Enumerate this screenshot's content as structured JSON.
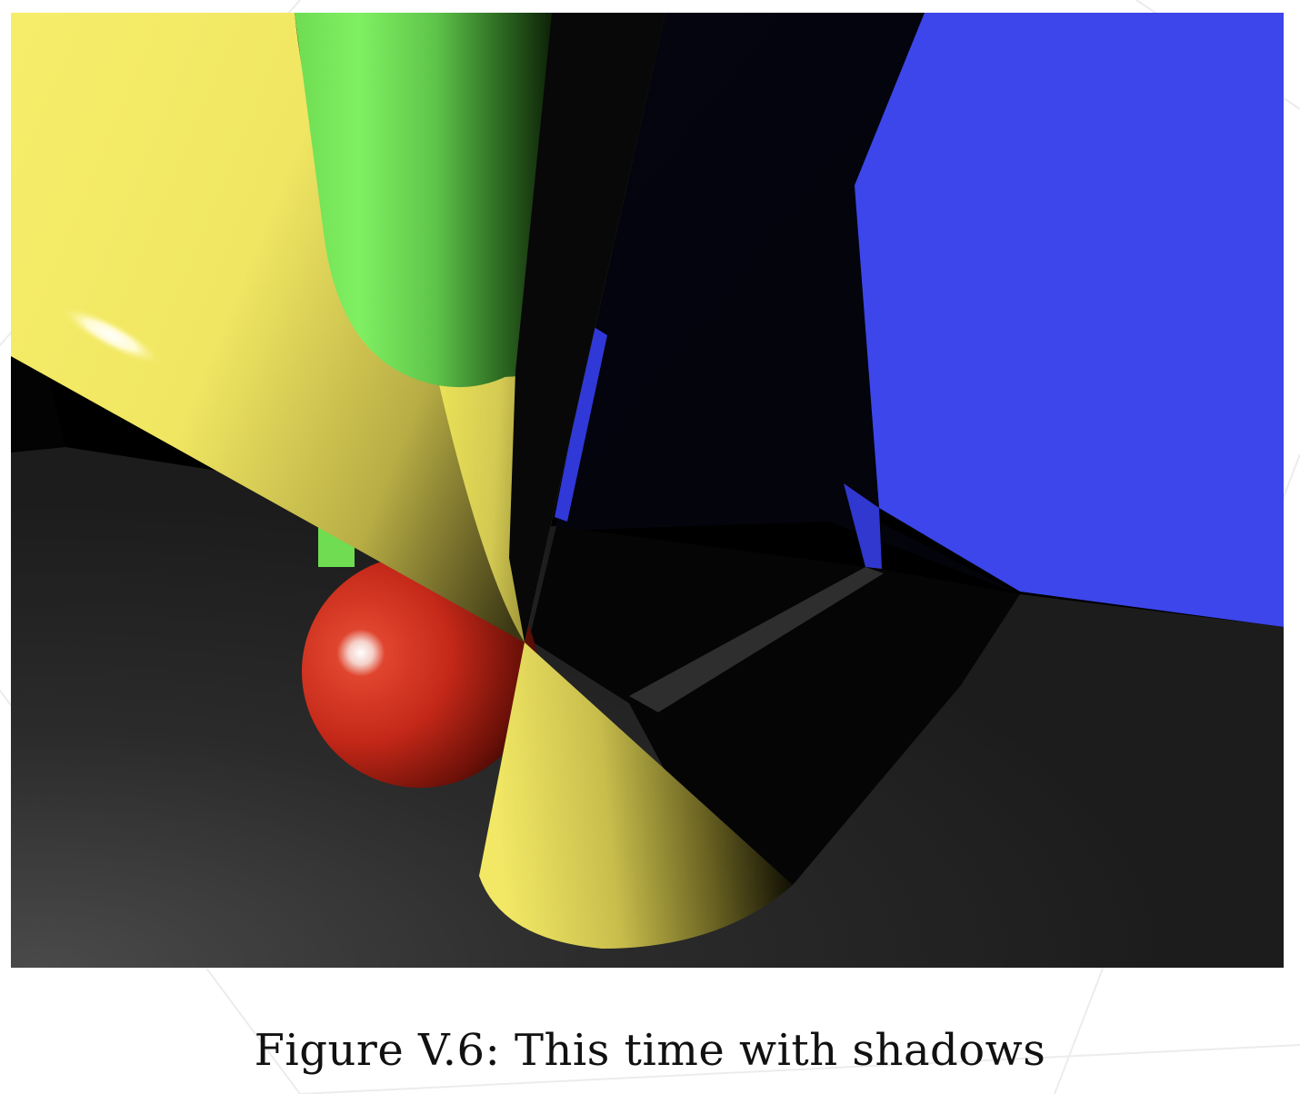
{
  "figure": {
    "caption": "Figure V.6: This time with shadows",
    "scene_objects": [
      {
        "name": "yellow-cone",
        "color": "#f4ec5e"
      },
      {
        "name": "green-cylinder",
        "color": "#7dee5c"
      },
      {
        "name": "red-sphere",
        "color": "#c8281c"
      },
      {
        "name": "blue-plane",
        "color": "#3c46ea"
      },
      {
        "name": "gray-floor",
        "color": "#2a2a2a"
      }
    ]
  }
}
